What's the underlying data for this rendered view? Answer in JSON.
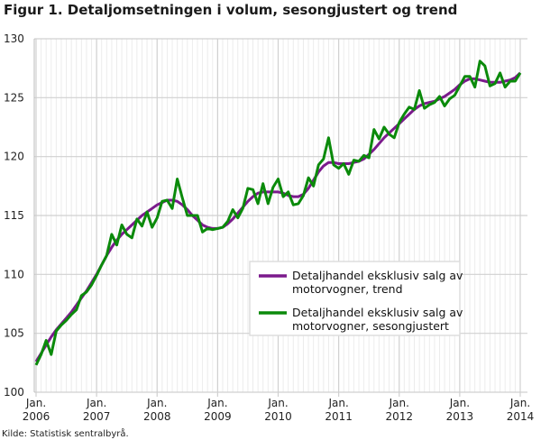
{
  "chart_data": {
    "type": "line",
    "title": "Figur 1. Detaljomsetningen i volum, sesongjustert og trend",
    "source": "Kilde: Statistisk sentralbyrå.",
    "xlabel": "",
    "ylabel": "",
    "ylim": [
      100,
      130
    ],
    "yticks": [
      100,
      105,
      110,
      115,
      120,
      125,
      130
    ],
    "x_start": "2006-01",
    "x_end": "2014-01",
    "xtick_labels": [
      [
        "Jan.",
        "2006"
      ],
      [
        "Jan.",
        "2007"
      ],
      [
        "Jan.",
        "2008"
      ],
      [
        "Jan.",
        "2009"
      ],
      [
        "Jan.",
        "2010"
      ],
      [
        "Jan.",
        "2011"
      ],
      [
        "Jan.",
        "2012"
      ],
      [
        "Jan.",
        "2013"
      ],
      [
        "Jan.",
        "2014"
      ]
    ],
    "grid": true,
    "legend_position": "center-right",
    "series": [
      {
        "name_line1": "Detaljhandel eksklusiv salg av",
        "name_line2": "motorvogner, trend",
        "color": "#7b1a8c",
        "values": [
          102.6,
          103.3,
          104.0,
          104.7,
          105.3,
          105.8,
          106.3,
          106.8,
          107.4,
          108.0,
          108.6,
          109.3,
          110.0,
          110.8,
          111.6,
          112.3,
          112.9,
          113.4,
          113.8,
          114.2,
          114.6,
          115.0,
          115.3,
          115.6,
          115.9,
          116.1,
          116.3,
          116.3,
          116.2,
          115.9,
          115.5,
          115.0,
          114.6,
          114.2,
          114.0,
          113.9,
          113.9,
          114.0,
          114.3,
          114.7,
          115.2,
          115.7,
          116.2,
          116.6,
          116.9,
          117.0,
          117.0,
          117.0,
          117.0,
          116.9,
          116.7,
          116.6,
          116.6,
          116.8,
          117.3,
          118.0,
          118.7,
          119.2,
          119.5,
          119.5,
          119.4,
          119.4,
          119.4,
          119.5,
          119.6,
          119.8,
          120.2,
          120.6,
          121.1,
          121.6,
          122.0,
          122.4,
          122.8,
          123.2,
          123.6,
          124.0,
          124.3,
          124.5,
          124.6,
          124.7,
          124.9,
          125.1,
          125.4,
          125.7,
          126.1,
          126.4,
          126.6,
          126.6,
          126.5,
          126.4,
          126.3,
          126.3,
          126.3,
          126.4,
          126.5,
          126.7,
          127.1
        ]
      },
      {
        "name_line1": "Detaljhandel eksklusiv salg av",
        "name_line2": "motorvogner, sesongjustert",
        "color": "#0a8a0a",
        "values": [
          102.3,
          103.2,
          104.4,
          103.2,
          105.2,
          105.7,
          106.1,
          106.6,
          107.0,
          108.2,
          108.5,
          109.1,
          109.9,
          110.8,
          111.6,
          113.4,
          112.5,
          114.2,
          113.4,
          113.1,
          114.7,
          114.1,
          115.3,
          114.0,
          114.8,
          116.2,
          116.3,
          115.6,
          118.1,
          116.5,
          115.0,
          115.0,
          115.0,
          113.6,
          113.9,
          113.8,
          113.9,
          114.0,
          114.5,
          115.5,
          114.8,
          115.6,
          117.3,
          117.2,
          116.0,
          117.7,
          116.0,
          117.4,
          118.1,
          116.6,
          117.0,
          115.9,
          116.0,
          116.7,
          118.2,
          117.5,
          119.3,
          119.8,
          121.6,
          119.3,
          119.0,
          119.4,
          118.5,
          119.7,
          119.6,
          120.1,
          119.9,
          122.3,
          121.5,
          122.5,
          121.9,
          121.6,
          122.9,
          123.6,
          124.2,
          124.0,
          125.6,
          124.1,
          124.4,
          124.6,
          125.1,
          124.3,
          124.9,
          125.2,
          126.0,
          126.8,
          126.8,
          125.9,
          128.1,
          127.7,
          126.0,
          126.2,
          127.1,
          125.9,
          126.4,
          126.4,
          127.1
        ]
      }
    ]
  }
}
